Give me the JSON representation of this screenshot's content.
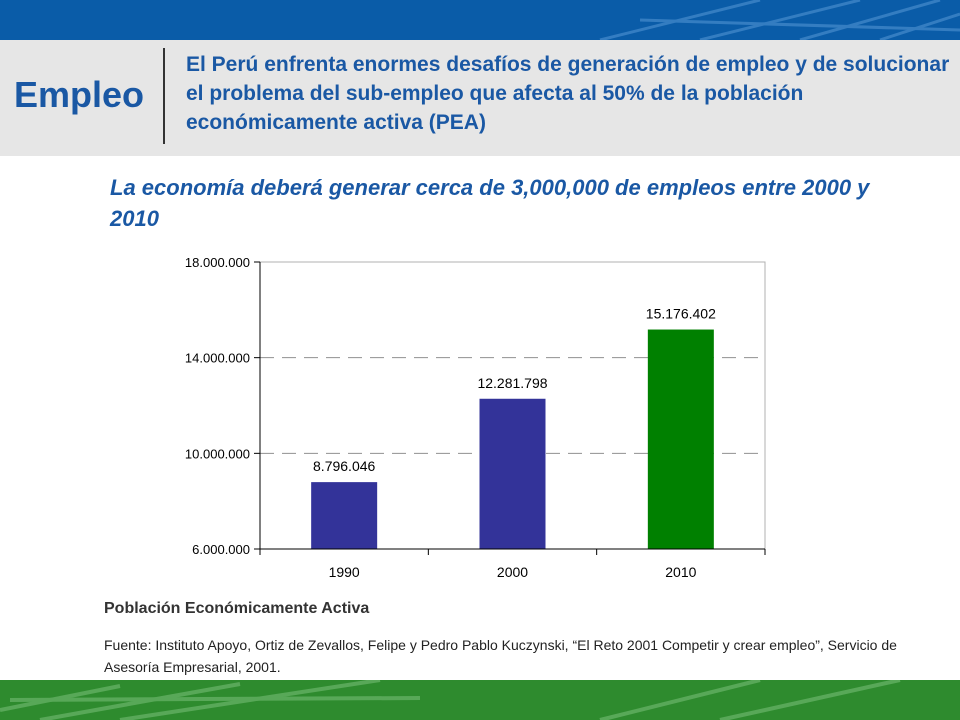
{
  "header": {
    "label": "Empleo",
    "text": "El Perú enfrenta enormes desafíos de generación de empleo y de solucionar el problema del sub-empleo que afecta al 50% de la población económicamente activa (PEA)"
  },
  "subtitle": "La economía deberá generar cerca de 3,000,000 de empleos entre 2000 y 2010",
  "chart_data": {
    "type": "bar",
    "categories": [
      "1990",
      "2000",
      "2010"
    ],
    "values": [
      8796046,
      12281798,
      15176402
    ],
    "data_labels": [
      "8.796.046",
      "12.281.798",
      "15.176.402"
    ],
    "y_ticks": [
      6000000,
      10000000,
      14000000,
      18000000
    ],
    "y_tick_labels": [
      "6.000.000",
      "10.000.000",
      "14.000.000",
      "18.000.000"
    ],
    "ylim": [
      6000000,
      18000000
    ],
    "bar_colors": [
      "#333399",
      "#333399",
      "#008000"
    ],
    "grid": "dashed horizontal",
    "title": "Población Económicamente Activa"
  },
  "source": "Fuente: Instituto Apoyo, Ortiz de Zevallos, Felipe y Pedro Pablo Kuczynski, “El Reto 2001 Competir y crear empleo”, Servicio de Asesoría Empresarial, 2001.",
  "colors": {
    "top_bar": "#0a5ca8",
    "bottom_bar": "#2e8b2e",
    "heading": "#1a58a4",
    "header_bg": "#e6e6e6"
  }
}
